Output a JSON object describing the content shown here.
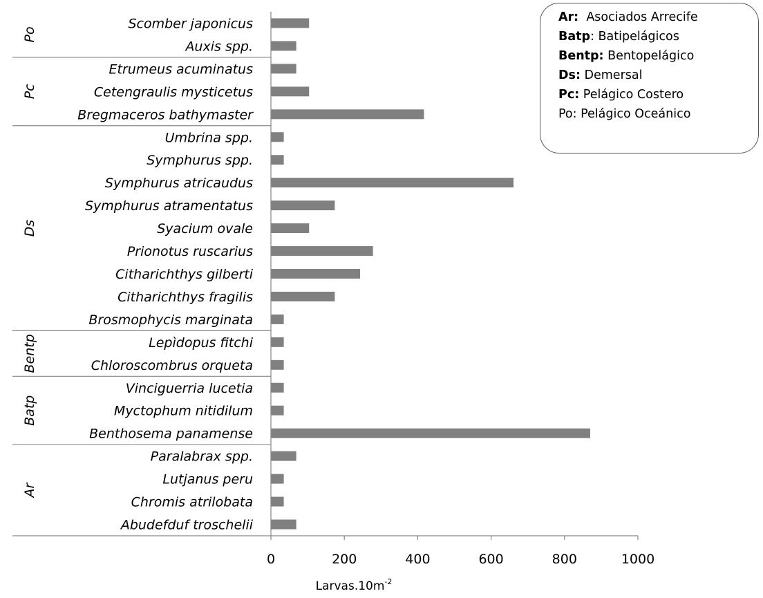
{
  "chart_data": {
    "type": "bar",
    "orientation": "horizontal",
    "title": "",
    "xlabel": "Larvas.10m",
    "xlabel_sup": "-2",
    "ylabel": "",
    "xlim": [
      0,
      1000
    ],
    "xticks": [
      "0",
      "200",
      "400",
      "600",
      "800",
      "1000"
    ],
    "grid": false,
    "bar_color": "#808080",
    "categories": [
      "Scomber japonicus",
      "Auxis spp.",
      "Etrumeus acuminatus",
      "Cetengraulis mysticetus",
      "Bregmaceros bathymaster",
      "Umbrina spp.",
      "Symphurus spp.",
      "Symphurus atricaudus",
      "Symphurus atramentatus",
      "Syacium ovale",
      "Prionotus ruscarius",
      "Citharichthys gilberti",
      "Citharichthys fragilis",
      "Brosmophycis marginata",
      "Lepìdopus fitchi",
      "Chloroscombrus orqueta",
      "Vinciguerria lucetia",
      "Myctophum nitidilum",
      "Benthosema panamense",
      "Paralabrax spp.",
      "Lutjanus peru",
      "Chromis atrilobata",
      "Abudefduf troschelii"
    ],
    "values": [
      104,
      69,
      69,
      104,
      417,
      35,
      35,
      661,
      174,
      104,
      278,
      243,
      174,
      35,
      35,
      35,
      35,
      35,
      870,
      69,
      35,
      35,
      69
    ],
    "groups": [
      {
        "label": "Po",
        "count": 2
      },
      {
        "label": "Pc",
        "count": 3
      },
      {
        "label": "Ds",
        "count": 9
      },
      {
        "label": "Bentp",
        "count": 2
      },
      {
        "label": "Batp",
        "count": 3
      },
      {
        "label": "Ar",
        "count": 4
      }
    ],
    "legend": {
      "placement": "top-right",
      "entries": [
        {
          "key": "Ar:",
          "text": "  Asociados Arrecife",
          "bold_key": true
        },
        {
          "key": "Batp",
          "text": ": Batipelágicos",
          "bold_key": true
        },
        {
          "key": "Bentp:",
          "text": " Bentopelágico",
          "bold_key": true
        },
        {
          "key": "Ds:",
          "text": " Demersal",
          "bold_key": true
        },
        {
          "key": "Pc:",
          "text": " Pelágico Costero",
          "bold_key": true
        },
        {
          "key": "",
          "text": "Po: Pelágico Oceánico",
          "bold_key": false
        }
      ]
    }
  }
}
